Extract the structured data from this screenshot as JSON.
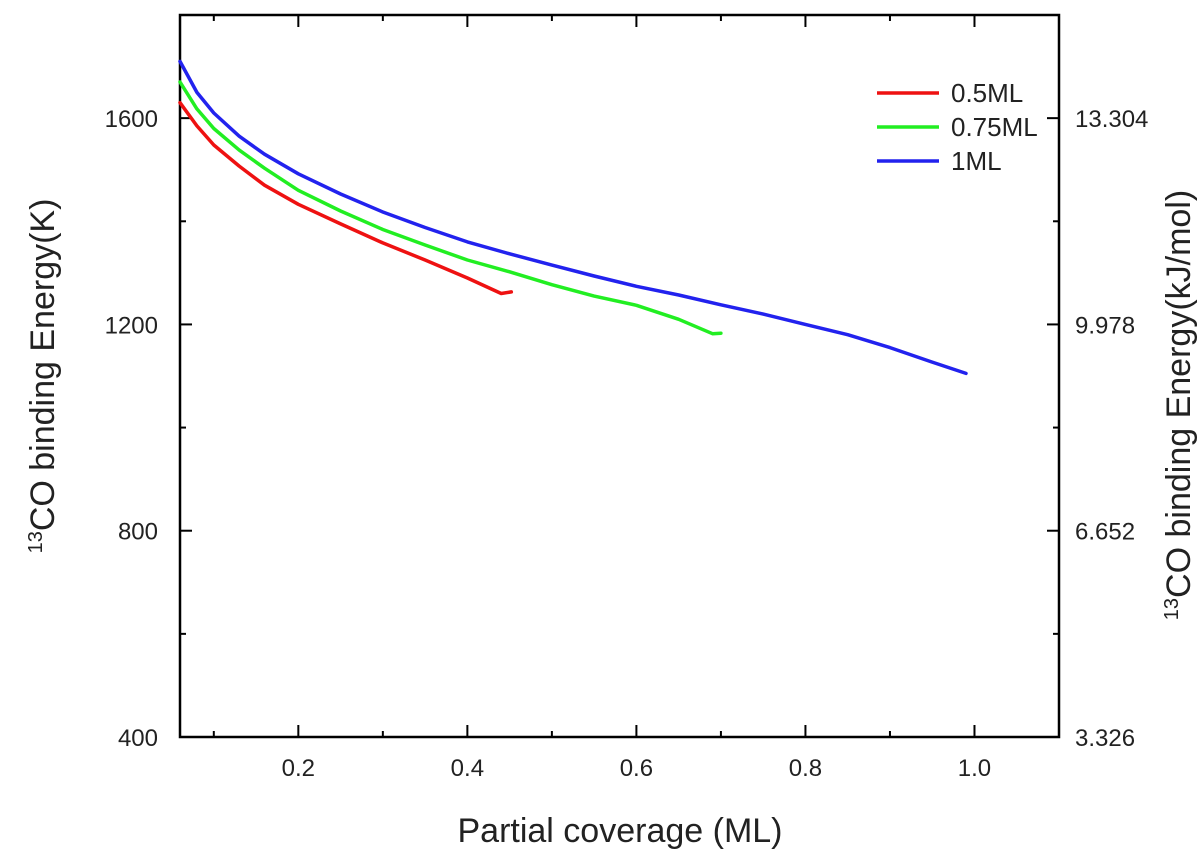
{
  "chart_data": {
    "type": "line",
    "title": "",
    "xlabel": "Partial coverage (ML)",
    "ylabel_left": {
      "sup": "13",
      "text": "CO binding Energy(K)"
    },
    "ylabel_right": {
      "sup": "13",
      "text": "CO binding Energy(kJ/mol)"
    },
    "xlim": [
      0.06,
      1.1
    ],
    "ylim": [
      400,
      1800
    ],
    "x_ticks": [
      "0.2",
      "0.4",
      "0.6",
      "0.8",
      "1.0"
    ],
    "x_tick_values": [
      0.2,
      0.4,
      0.6,
      0.8,
      1.0
    ],
    "y_ticks_left": [
      "400",
      "800",
      "1200",
      "1600"
    ],
    "y_tick_values": [
      400,
      800,
      1200,
      1600
    ],
    "y_ticks_right": [
      "3.326",
      "6.652",
      "9.978",
      "13.304"
    ],
    "legend_position": "top-right",
    "grid": false,
    "series": [
      {
        "name": "0.5ML",
        "color": "#ee1111",
        "x": [
          0.06,
          0.08,
          0.1,
          0.13,
          0.16,
          0.2,
          0.25,
          0.3,
          0.35,
          0.4,
          0.44,
          0.452
        ],
        "y": [
          1630,
          1585,
          1548,
          1507,
          1470,
          1433,
          1395,
          1358,
          1325,
          1290,
          1260,
          1263
        ]
      },
      {
        "name": "0.75ML",
        "color": "#22ee22",
        "x": [
          0.06,
          0.08,
          0.1,
          0.13,
          0.16,
          0.2,
          0.25,
          0.3,
          0.35,
          0.4,
          0.45,
          0.5,
          0.55,
          0.6,
          0.65,
          0.69,
          0.7
        ],
        "y": [
          1670,
          1618,
          1580,
          1538,
          1503,
          1460,
          1420,
          1384,
          1354,
          1325,
          1302,
          1277,
          1255,
          1237,
          1210,
          1182,
          1183
        ]
      },
      {
        "name": "1ML",
        "color": "#2222ee",
        "x": [
          0.06,
          0.08,
          0.1,
          0.13,
          0.16,
          0.2,
          0.25,
          0.3,
          0.35,
          0.4,
          0.45,
          0.5,
          0.55,
          0.6,
          0.65,
          0.7,
          0.75,
          0.8,
          0.85,
          0.9,
          0.95,
          0.99
        ],
        "y": [
          1710,
          1650,
          1610,
          1565,
          1530,
          1492,
          1453,
          1418,
          1388,
          1360,
          1337,
          1315,
          1294,
          1274,
          1257,
          1238,
          1220,
          1200,
          1180,
          1155,
          1127,
          1105
        ]
      }
    ]
  }
}
